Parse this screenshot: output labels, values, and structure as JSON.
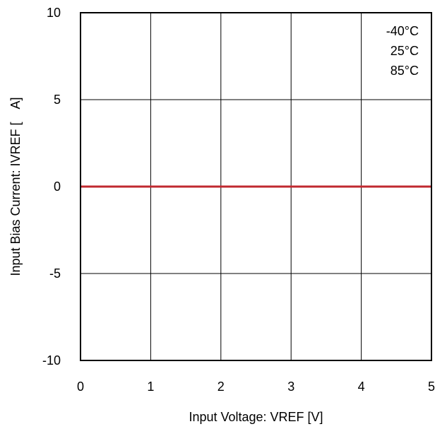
{
  "chart_data": {
    "type": "line",
    "xlabel": "Input Voltage: VREF [V]",
    "ylabel": "Input Bias Current: IVREF [　A]",
    "xlim": [
      0,
      5
    ],
    "ylim": [
      -10,
      10
    ],
    "xticks": [
      "0",
      "1",
      "2",
      "3",
      "4",
      "5"
    ],
    "yticks": [
      "10",
      "5",
      "0",
      "-5",
      "-10"
    ],
    "grid": true,
    "legend_position": "top-right",
    "series": [
      {
        "name": "-40°C",
        "color": "#1f3f8f",
        "x": [
          0,
          5
        ],
        "y": [
          0,
          0
        ]
      },
      {
        "name": "25°C",
        "color": "#2e8b2e",
        "x": [
          0,
          5
        ],
        "y": [
          0,
          0
        ]
      },
      {
        "name": "85°C",
        "color": "#c0292f",
        "x": [
          0,
          5
        ],
        "y": [
          0,
          0
        ]
      }
    ]
  }
}
